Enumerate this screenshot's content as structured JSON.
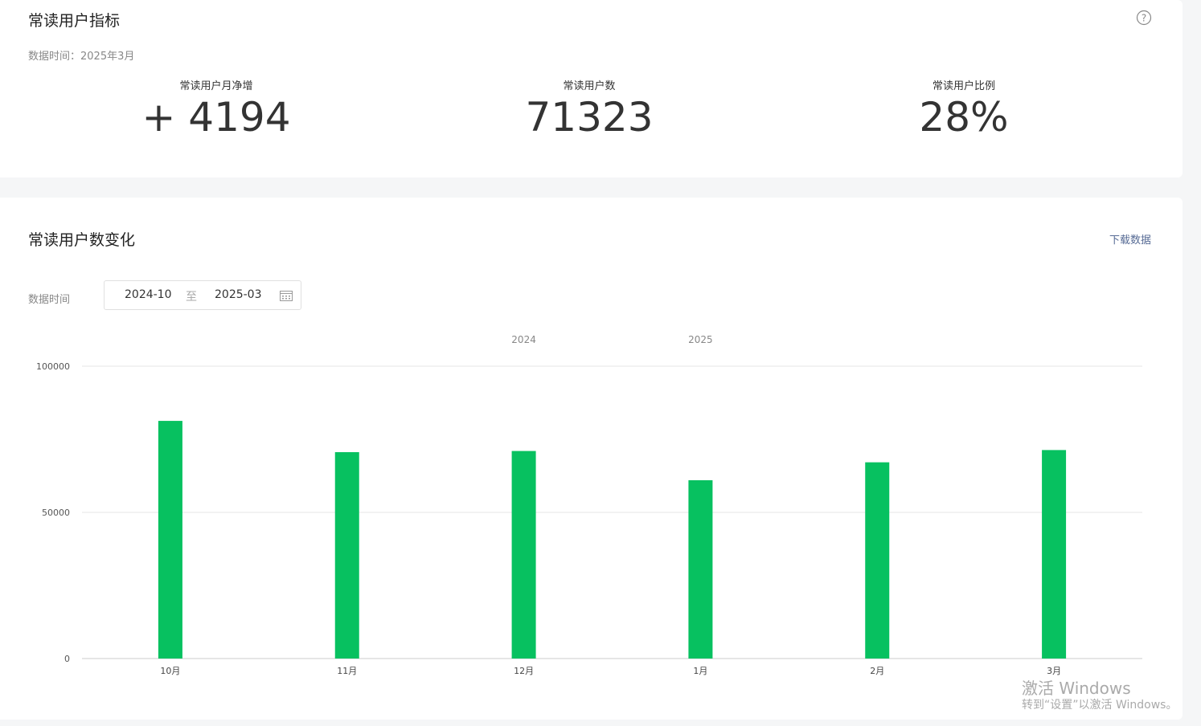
{
  "metrics_card": {
    "title": "常读用户指标",
    "date": "数据时间：2025年3月",
    "metrics": [
      {
        "label": "常读用户月净增",
        "value": "+ 4194"
      },
      {
        "label": "常读用户数",
        "value": "71323"
      },
      {
        "label": "常读用户比例",
        "value": "28%"
      }
    ]
  },
  "trend_card": {
    "title": "常读用户数变化",
    "download": "下载数据",
    "date_label": "数据时间",
    "date_start": "2024-10",
    "date_sep": "至",
    "date_end": "2025-03"
  },
  "chart_data": {
    "type": "bar",
    "categories": [
      "10月",
      "11月",
      "12月",
      "1月",
      "2月",
      "3月"
    ],
    "year_labels": [
      "2024",
      "2025"
    ],
    "values": [
      81300,
      70600,
      71000,
      61000,
      67129,
      71323
    ],
    "color": "#07c160",
    "ylim": [
      0,
      100000
    ],
    "yticks": [
      0,
      50000,
      100000
    ],
    "grid": true
  },
  "watermark": {
    "line1": "激活 Windows",
    "line2": "转到“设置”以激活 Windows。"
  }
}
